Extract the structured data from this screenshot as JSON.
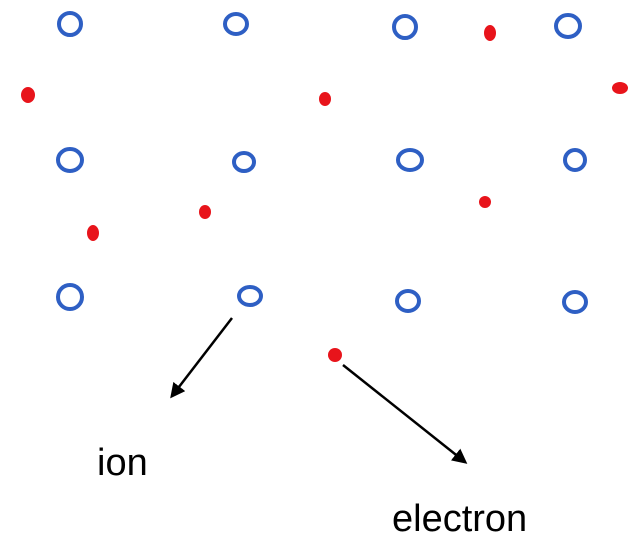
{
  "labels": {
    "ion": "ion",
    "electron": "electron"
  }
}
